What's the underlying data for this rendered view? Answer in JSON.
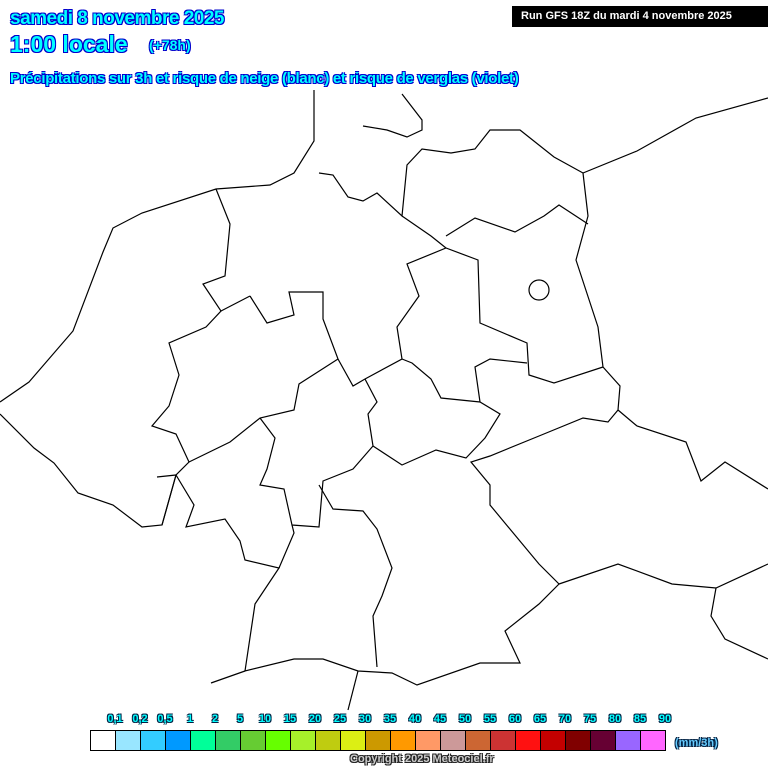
{
  "header": {
    "date": "samedi 8 novembre 2025",
    "time": "1:00 locale",
    "lead": "(+78h)",
    "subtitle": "Précipitations sur 3h et risque de neige (blanc) et risque de verglas (violet)",
    "run": "Run GFS 18Z du mardi 4 novembre 2025"
  },
  "legend": {
    "unit": "(mm/3h)",
    "labels": [
      "0,1",
      "0,2",
      "0,5",
      "1",
      "2",
      "5",
      "10",
      "15",
      "20",
      "25",
      "30",
      "35",
      "40",
      "45",
      "50",
      "55",
      "60",
      "65",
      "70",
      "75",
      "80",
      "85",
      "90"
    ],
    "colors": [
      "#ffffff",
      "#99e6ff",
      "#33ccff",
      "#0099ff",
      "#00ff99",
      "#33cc66",
      "#66cc33",
      "#66ff00",
      "#a6f02a",
      "#bfcc10",
      "#dcef14",
      "#cc9900",
      "#ff9900",
      "#ff9966",
      "#cc9999",
      "#cc6633",
      "#cc3333",
      "#ff1111",
      "#c40000",
      "#800000",
      "#660033",
      "#9966ff",
      "#ff66ff"
    ]
  },
  "footer": {
    "copyright": "Copyright 2025 Meteociel.fr"
  }
}
